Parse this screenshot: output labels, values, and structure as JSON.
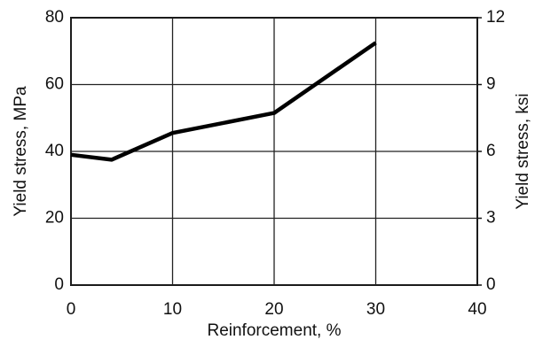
{
  "chart_data": {
    "type": "line",
    "xlabel": "Reinforcement, %",
    "ylabel": "Yield stress, MPa",
    "y2label": "Yield stress, ksi",
    "x": [
      0,
      4,
      10,
      20,
      30
    ],
    "series": [
      {
        "color": "#000000",
        "values": [
          39,
          37.5,
          45.5,
          51.5,
          72.5
        ]
      }
    ],
    "xlim": [
      0,
      40
    ],
    "xticks": [
      0,
      10,
      20,
      30,
      40
    ],
    "ylim": [
      0,
      80
    ],
    "yticks": [
      0,
      20,
      40,
      60,
      80
    ],
    "y2lim": [
      0,
      12
    ],
    "y2ticks": [
      0,
      3,
      6,
      9,
      12
    ],
    "grid": true
  }
}
